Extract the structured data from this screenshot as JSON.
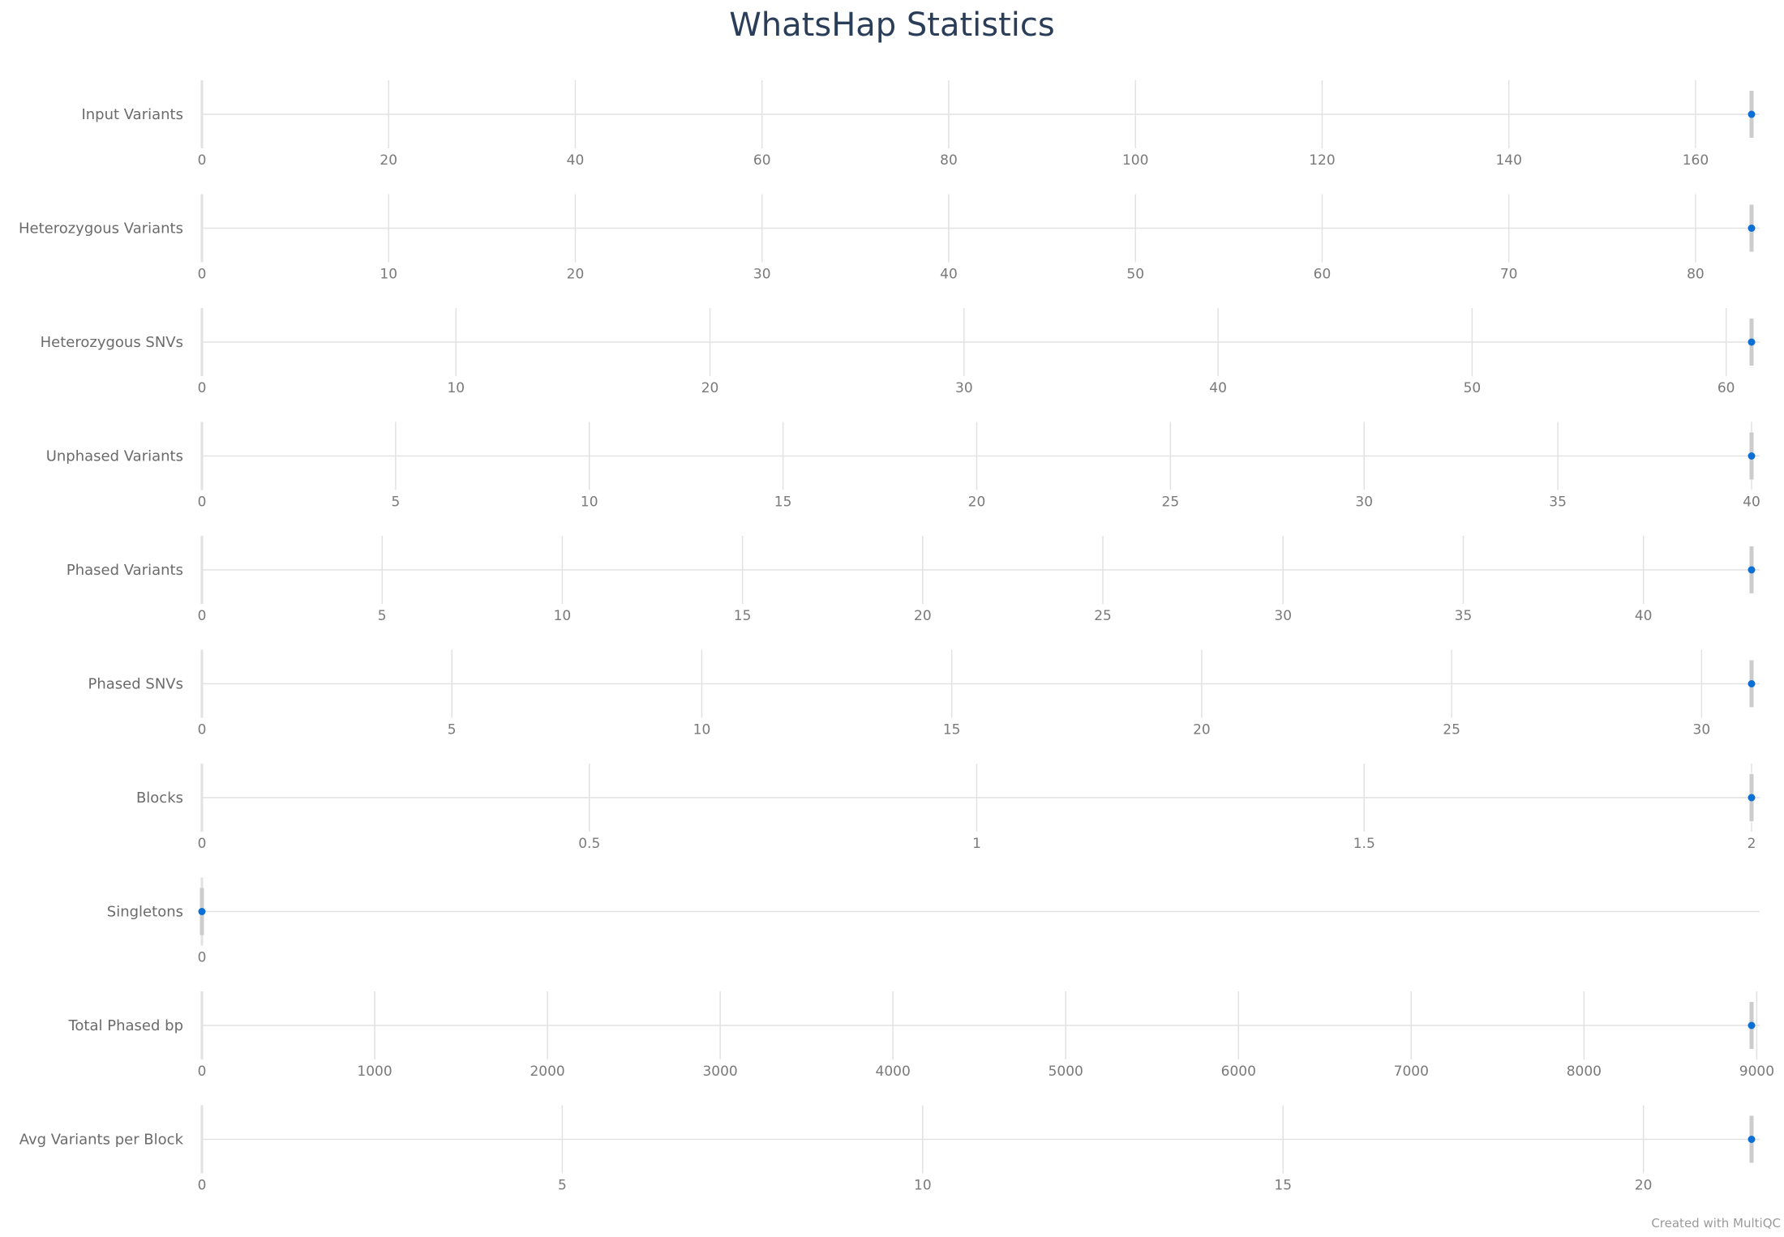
{
  "title": "WhatsHap Statistics",
  "credit": "Created with MultiQC",
  "colors": {
    "title": "#2b3e59",
    "label": "#6b6b6b",
    "gridline": "#e2e2e2",
    "marker": "#0b6fd6",
    "range_bar": "#cccccc"
  },
  "chart_data": {
    "type": "scatter",
    "orientation": "horizontal",
    "grid": true,
    "metrics": [
      {
        "name": "Input Variants",
        "value": 166,
        "ticks": [
          0,
          20,
          40,
          60,
          80,
          100,
          120,
          140,
          160
        ],
        "xlim": [
          0,
          166
        ]
      },
      {
        "name": "Heterozygous Variants",
        "value": 83,
        "ticks": [
          0,
          10,
          20,
          30,
          40,
          50,
          60,
          70,
          80
        ],
        "xlim": [
          0,
          83
        ]
      },
      {
        "name": "Heterozygous SNVs",
        "value": 61,
        "ticks": [
          0,
          10,
          20,
          30,
          40,
          50,
          60
        ],
        "xlim": [
          0,
          61
        ]
      },
      {
        "name": "Unphased Variants",
        "value": 40,
        "ticks": [
          0,
          5,
          10,
          15,
          20,
          25,
          30,
          35,
          40
        ],
        "xlim": [
          0,
          40
        ]
      },
      {
        "name": "Phased Variants",
        "value": 43,
        "ticks": [
          0,
          5,
          10,
          15,
          20,
          25,
          30,
          35,
          40
        ],
        "xlim": [
          0,
          43
        ]
      },
      {
        "name": "Phased SNVs",
        "value": 31,
        "ticks": [
          0,
          5,
          10,
          15,
          20,
          25,
          30
        ],
        "xlim": [
          0,
          31
        ]
      },
      {
        "name": "Blocks",
        "value": 2,
        "ticks": [
          0,
          0.5,
          1,
          1.5,
          2
        ],
        "xlim": [
          0,
          2
        ]
      },
      {
        "name": "Singletons",
        "value": 0,
        "ticks": [
          0
        ],
        "xlim": [
          0,
          1
        ]
      },
      {
        "name": "Total Phased bp",
        "value": 8970,
        "ticks": [
          0,
          1000,
          2000,
          3000,
          4000,
          5000,
          6000,
          7000,
          8000,
          9000
        ],
        "xlim": [
          0,
          8970
        ]
      },
      {
        "name": "Avg Variants per Block",
        "value": 21.5,
        "ticks": [
          0,
          5,
          10,
          15,
          20
        ],
        "xlim": [
          0,
          21.5
        ]
      }
    ]
  }
}
